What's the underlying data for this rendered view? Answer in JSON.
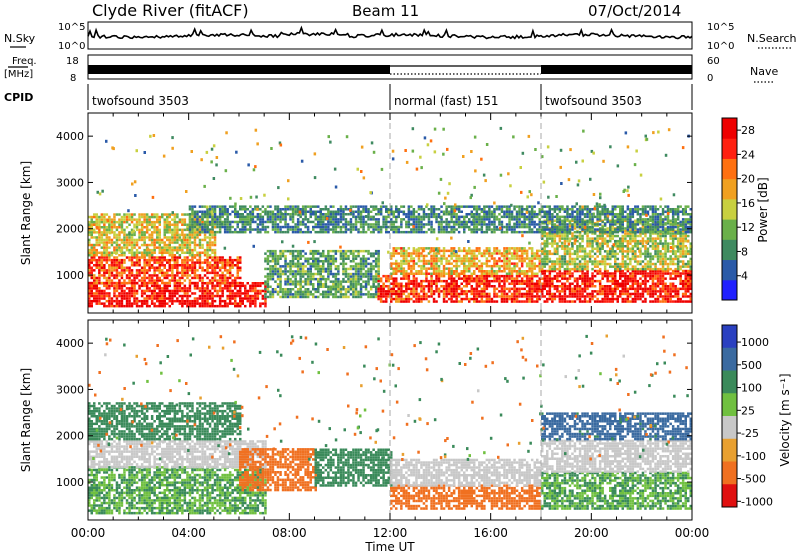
{
  "header": {
    "site": "Clyde River (fitACF)",
    "beam": "Beam 11",
    "date": "07/Oct/2014"
  },
  "panels": {
    "nsky_label": "N.Sky",
    "nsearch_label": "N.Search",
    "freq_label_top": "Freq.",
    "freq_label_unit": "[MHz]",
    "nave_label": "Nave",
    "cpid_label": "CPID",
    "nsky_ticks": [
      "10^5",
      "10^0"
    ],
    "nsearch_ticks": [
      "10^5",
      "10^0"
    ],
    "freq_ticks": [
      "18",
      "8"
    ],
    "nave_ticks": [
      "60",
      "0"
    ]
  },
  "cpid_segments": [
    {
      "label": "twofsound 3503",
      "start_hour": 0,
      "end_hour": 12
    },
    {
      "label": "normal (fast) 151",
      "start_hour": 12,
      "end_hour": 18
    },
    {
      "label": "twofsound 3503",
      "start_hour": 18,
      "end_hour": 24
    }
  ],
  "time_axis": {
    "label": "Time UT",
    "ticks": [
      "00:00",
      "04:00",
      "08:00",
      "12:00",
      "16:00",
      "20:00",
      "00:00"
    ],
    "range_hours": [
      0,
      24
    ]
  },
  "chart_data": [
    {
      "type": "heatmap",
      "name": "power",
      "ylabel": "Slant Range [km]",
      "yticks": [
        "1000",
        "2000",
        "3000",
        "4000"
      ],
      "ylim": [
        180,
        4500
      ],
      "xlim": [
        0,
        24
      ],
      "colorbar_label": "Power [dB]",
      "colorbar_ticks": [
        "4",
        "8",
        "12",
        "16",
        "20",
        "24",
        "28"
      ],
      "colorbar_range": [
        0,
        30
      ],
      "colormap": [
        "#2020ff",
        "#2a5aa8",
        "#3f8a60",
        "#6ab04a",
        "#c8d040",
        "#f0a020",
        "#ff7010",
        "#ff2010",
        "#ee0000"
      ],
      "scatter_bands": [
        {
          "x": [
            0,
            7
          ],
          "y": [
            300,
            800
          ],
          "value": 28
        },
        {
          "x": [
            0,
            6
          ],
          "y": [
            800,
            1400
          ],
          "value": 24
        },
        {
          "x": [
            0,
            5
          ],
          "y": [
            1400,
            2300
          ],
          "value": 16
        },
        {
          "x": [
            7,
            11.5
          ],
          "y": [
            500,
            1500
          ],
          "value": 10
        },
        {
          "x": [
            11.5,
            18
          ],
          "y": [
            400,
            1000
          ],
          "value": 26
        },
        {
          "x": [
            12,
            18
          ],
          "y": [
            1000,
            1600
          ],
          "value": 18
        },
        {
          "x": [
            18,
            24
          ],
          "y": [
            400,
            1100
          ],
          "value": 28
        },
        {
          "x": [
            18,
            24
          ],
          "y": [
            1100,
            2200
          ],
          "value": 14
        },
        {
          "x": [
            4,
            24
          ],
          "y": [
            1900,
            2500
          ],
          "value": 8
        }
      ]
    },
    {
      "type": "heatmap",
      "name": "velocity",
      "ylabel": "Slant Range [km]",
      "yticks": [
        "1000",
        "2000",
        "3000",
        "4000"
      ],
      "ylim": [
        180,
        4500
      ],
      "xlim": [
        0,
        24
      ],
      "colorbar_label": "Velocity [m s⁻¹]",
      "colorbar_ticks": [
        "1000",
        "500",
        "100",
        "25",
        "-25",
        "-100",
        "-500",
        "-1000"
      ],
      "colormap": [
        "#2a40c0",
        "#3a6aa0",
        "#3a8a5a",
        "#70c040",
        "#c8c8c8",
        "#e8a030",
        "#f07020",
        "#e01010"
      ],
      "scatter_bands": [
        {
          "x": [
            0,
            7
          ],
          "y": [
            300,
            1300
          ],
          "value": 100
        },
        {
          "x": [
            0,
            7
          ],
          "y": [
            1300,
            1900
          ],
          "value": 0
        },
        {
          "x": [
            0,
            6
          ],
          "y": [
            1900,
            2700
          ],
          "value": 300
        },
        {
          "x": [
            6,
            9
          ],
          "y": [
            800,
            1700
          ],
          "value": -150
        },
        {
          "x": [
            9,
            12
          ],
          "y": [
            900,
            1700
          ],
          "value": 150
        },
        {
          "x": [
            12,
            18
          ],
          "y": [
            400,
            900
          ],
          "value": -200
        },
        {
          "x": [
            12,
            18
          ],
          "y": [
            900,
            1500
          ],
          "value": 0
        },
        {
          "x": [
            18,
            24
          ],
          "y": [
            400,
            1200
          ],
          "value": 100
        },
        {
          "x": [
            18,
            24
          ],
          "y": [
            1200,
            1900
          ],
          "value": 0
        },
        {
          "x": [
            18,
            24
          ],
          "y": [
            1900,
            2500
          ],
          "value": 600
        }
      ]
    }
  ]
}
